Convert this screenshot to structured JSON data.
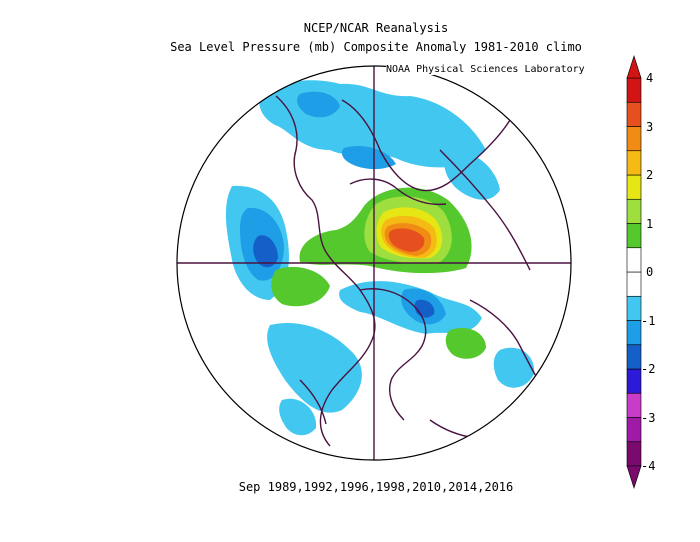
{
  "header": {
    "title": "NCEP/NCAR Reanalysis",
    "subtitle": "Sea Level Pressure (mb) Composite Anomaly 1981-2010 climo",
    "credit": "NOAA Physical Sciences Laboratory"
  },
  "footer": {
    "period": "Sep 1989,1992,1996,1998,2010,2014,2016"
  },
  "colorbar": {
    "labels": [
      "4",
      "3",
      "2",
      "1",
      "0",
      "-1",
      "-2",
      "-3",
      "-4"
    ],
    "colors": [
      "#7a0a6e",
      "#a01aa8",
      "#c83cc8",
      "#2d1ad8",
      "#1460c8",
      "#1e9ee6",
      "#42c8f0",
      "#ffffff",
      "#ffffff",
      "#54c82c",
      "#9ede3e",
      "#e6e614",
      "#f5ba14",
      "#f08c14",
      "#e6501e",
      "#d21414"
    ]
  },
  "legend": {
    "positive": "#d21414",
    "negative": "#1e9ee6"
  }
}
